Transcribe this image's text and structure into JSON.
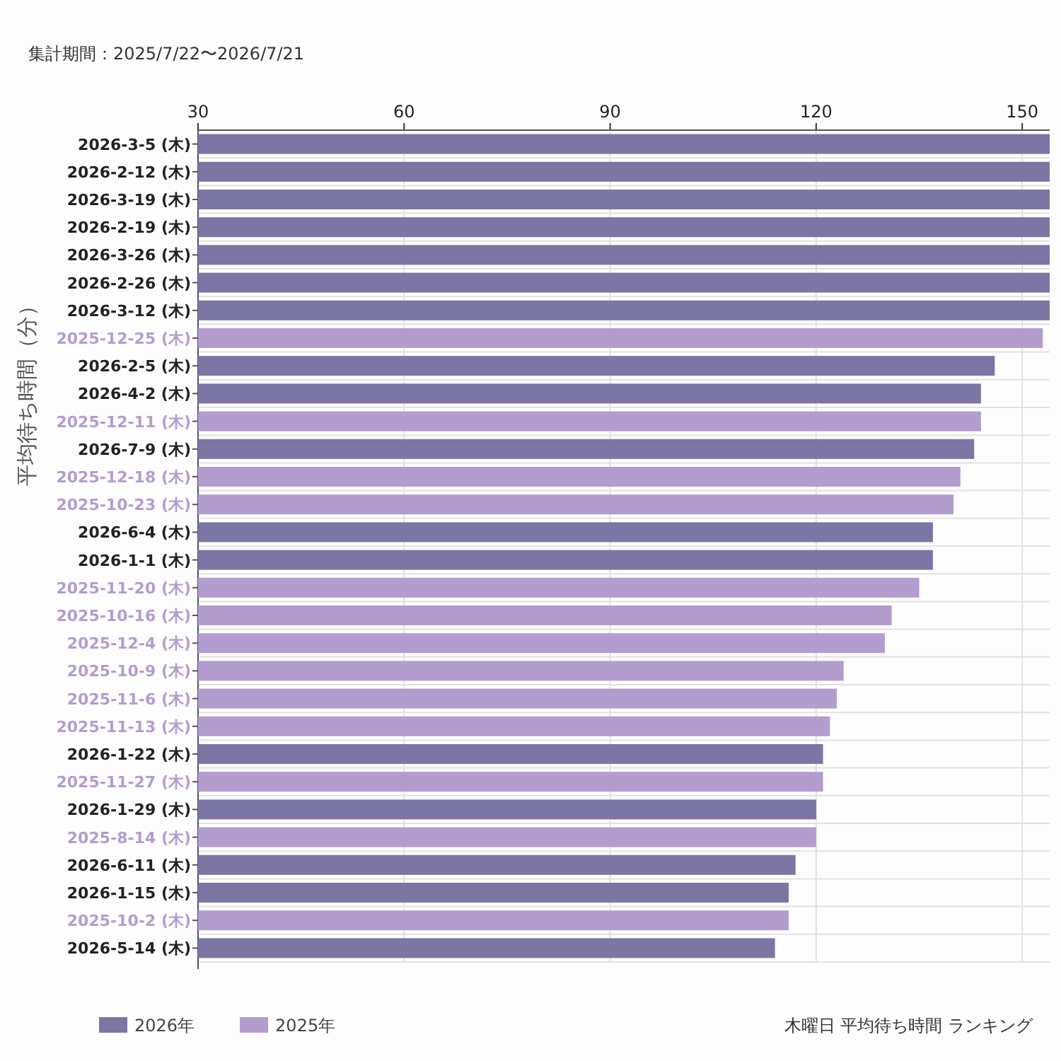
{
  "chart_data": {
    "type": "bar",
    "orientation": "horizontal",
    "title": "木曜日 平均待ち時間 ランキング",
    "subtitle": "集計期間：2025/7/22〜2026/7/21",
    "ylabel": "平均待ち時間（分）",
    "categories": [
      "2026-3-5 (木)",
      "2026-2-12 (木)",
      "2026-3-19 (木)",
      "2026-2-19 (木)",
      "2026-3-26 (木)",
      "2026-2-26 (木)",
      "2026-3-12 (木)",
      "2025-12-25 (木)",
      "2026-2-5 (木)",
      "2026-4-2 (木)",
      "2025-12-11 (木)",
      "2026-7-9 (木)",
      "2025-12-18 (木)",
      "2025-10-23 (木)",
      "2026-6-4 (木)",
      "2026-1-1 (木)",
      "2025-11-20 (木)",
      "2025-10-16 (木)",
      "2025-12-4 (木)",
      "2025-10-9 (木)",
      "2025-11-6 (木)",
      "2025-11-13 (木)",
      "2026-1-22 (木)",
      "2025-11-27 (木)",
      "2026-1-29 (木)",
      "2025-8-14 (木)",
      "2026-6-11 (木)",
      "2026-1-15 (木)",
      "2025-10-2 (木)",
      "2026-5-14 (木)"
    ],
    "series": [
      {
        "name": "2026年",
        "color": "#7b76a3",
        "values": [
          154,
          154,
          154,
          154,
          154,
          154,
          154,
          null,
          146,
          144,
          null,
          143,
          null,
          null,
          137,
          137,
          null,
          null,
          null,
          null,
          null,
          null,
          121,
          null,
          120,
          null,
          117,
          116,
          null,
          114
        ]
      },
      {
        "name": "2025年",
        "color": "#b39dcf",
        "values": [
          null,
          null,
          null,
          null,
          null,
          null,
          null,
          153,
          null,
          null,
          144,
          null,
          141,
          140,
          null,
          null,
          135,
          131,
          130,
          124,
          123,
          122,
          null,
          121,
          null,
          120,
          null,
          null,
          116,
          null
        ]
      }
    ],
    "xlim": [
      30,
      154
    ],
    "xticks": [
      30,
      60,
      90,
      120,
      150
    ],
    "grid": true,
    "legend": "bottom left"
  }
}
